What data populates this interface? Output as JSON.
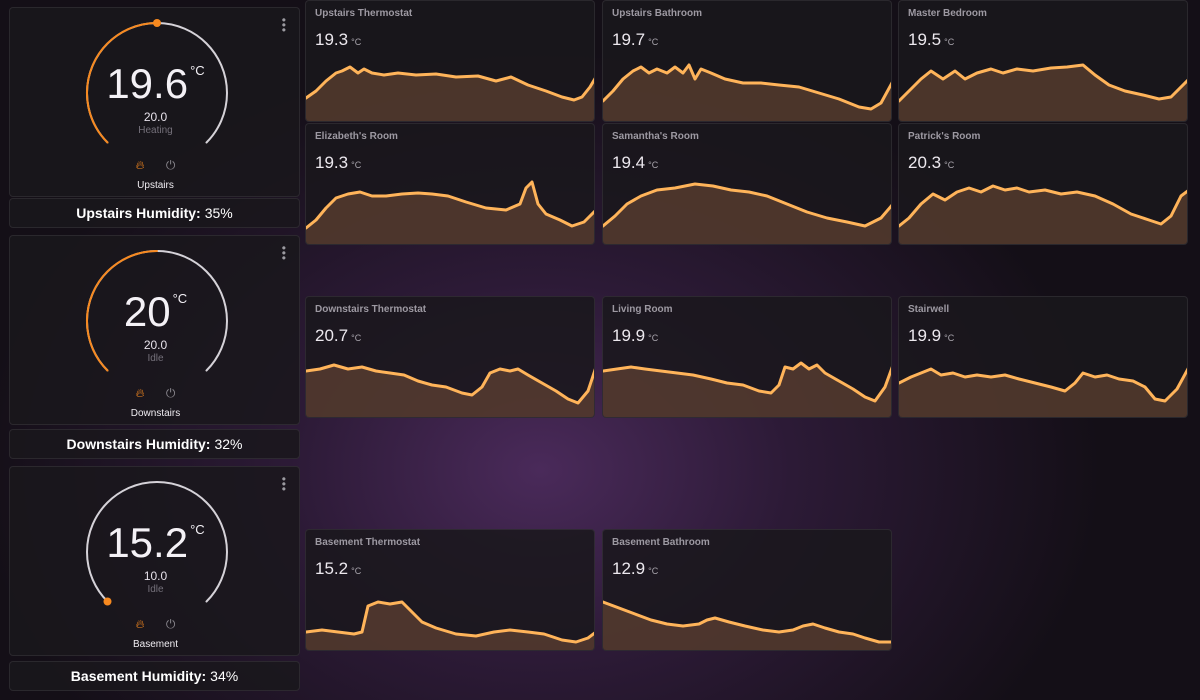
{
  "thermostats": [
    {
      "name": "Upstairs",
      "current": "19.6",
      "unit": "°C",
      "setpoint": "20.0",
      "status": "Heating",
      "humidity_label": "Upstairs Humidity:",
      "humidity_value": "35%",
      "setpoint_fraction": 0.5,
      "arc_color": "#f7891f"
    },
    {
      "name": "Downstairs",
      "current": "20",
      "unit": "°C",
      "setpoint": "20.0",
      "status": "Idle",
      "humidity_label": "Downstairs Humidity:",
      "humidity_value": "32%",
      "setpoint_fraction": 0.5,
      "arc_color": "#f7891f"
    },
    {
      "name": "Basement",
      "current": "15.2",
      "unit": "°C",
      "setpoint": "10.0",
      "status": "Idle",
      "humidity_label": "Basement Humidity:",
      "humidity_value": "34%",
      "setpoint_fraction": 0.0,
      "arc_color": "#f7891f"
    }
  ],
  "sensors": [
    {
      "name": "Upstairs Thermostat",
      "value": "19.3",
      "unit": "°C"
    },
    {
      "name": "Upstairs Bathroom",
      "value": "19.7",
      "unit": "°C"
    },
    {
      "name": "Master Bedroom",
      "value": "19.5",
      "unit": "°C"
    },
    {
      "name": "Elizabeth's Room",
      "value": "19.3",
      "unit": "°C"
    },
    {
      "name": "Samantha's Room",
      "value": "19.4",
      "unit": "°C"
    },
    {
      "name": "Patrick's Room",
      "value": "20.3",
      "unit": "°C"
    },
    {
      "name": "Downstairs Thermostat",
      "value": "20.7",
      "unit": "°C"
    },
    {
      "name": "Living Room",
      "value": "19.9",
      "unit": "°C"
    },
    {
      "name": "Stairwell",
      "value": "19.9",
      "unit": "°C"
    },
    {
      "name": "Basement Thermostat",
      "value": "15.2",
      "unit": "°C"
    },
    {
      "name": "Basement Bathroom",
      "value": "12.9",
      "unit": "°C"
    }
  ],
  "icons": {
    "menu": "more-vertical-icon",
    "heat": "flame-icon",
    "off": "power-icon"
  },
  "colors": {
    "accent": "#f7891f",
    "spark_line": "#ffb45a",
    "spark_fill": "#8a5a3e"
  }
}
